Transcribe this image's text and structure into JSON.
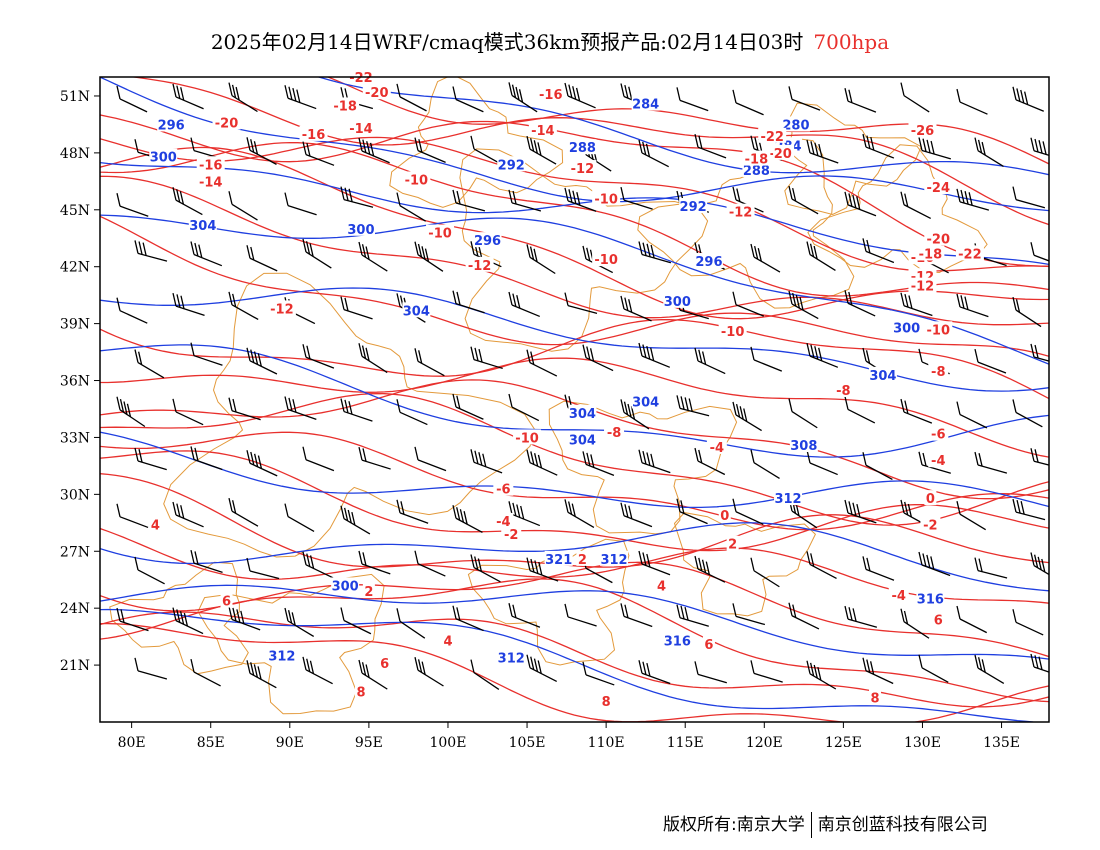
{
  "title": {
    "main": "2025年02月14日WRF/cmaq模式36km预报产品:02月14日03时",
    "level": "700hpa",
    "level_color": "#e8302d"
  },
  "axes": {
    "lon_labels": [
      "80E",
      "85E",
      "90E",
      "95E",
      "100E",
      "105E",
      "110E",
      "115E",
      "120E",
      "125E",
      "130E",
      "135E"
    ],
    "lat_labels": [
      "51N",
      "48N",
      "45N",
      "42N",
      "39N",
      "36N",
      "33N",
      "30N",
      "27N",
      "24N",
      "21N"
    ],
    "lon_range": [
      78,
      138
    ],
    "lat_range": [
      18,
      52
    ]
  },
  "colors": {
    "temperature_contours": "#e8302d",
    "geopotential_contours": "#1f3fe0",
    "boundaries": "#e39a3c",
    "wind_barbs": "#000000"
  },
  "geopotential_labels": [
    {
      "text": "296",
      "lon": 82.5,
      "lat": 49.5
    },
    {
      "text": "300",
      "lon": 82,
      "lat": 47.8
    },
    {
      "text": "304",
      "lon": 84.5,
      "lat": 44.2
    },
    {
      "text": "300",
      "lon": 94.5,
      "lat": 44
    },
    {
      "text": "296",
      "lon": 102.5,
      "lat": 43.4
    },
    {
      "text": "292",
      "lon": 104,
      "lat": 47.4
    },
    {
      "text": "288",
      "lon": 108.5,
      "lat": 48.3
    },
    {
      "text": "284",
      "lon": 112.5,
      "lat": 50.6
    },
    {
      "text": "292",
      "lon": 115.5,
      "lat": 45.2
    },
    {
      "text": "296",
      "lon": 116.5,
      "lat": 42.3
    },
    {
      "text": "300",
      "lon": 114.5,
      "lat": 40.2
    },
    {
      "text": "304",
      "lon": 98,
      "lat": 39.7
    },
    {
      "text": "304",
      "lon": 108.5,
      "lat": 34.3
    },
    {
      "text": "304",
      "lon": 112.5,
      "lat": 34.9
    },
    {
      "text": "304",
      "lon": 108.5,
      "lat": 32.9
    },
    {
      "text": "308",
      "lon": 122.5,
      "lat": 32.6
    },
    {
      "text": "304",
      "lon": 127.5,
      "lat": 36.3
    },
    {
      "text": "300",
      "lon": 129,
      "lat": 38.8
    },
    {
      "text": "312",
      "lon": 121.5,
      "lat": 29.8
    },
    {
      "text": "312",
      "lon": 110.5,
      "lat": 26.6
    },
    {
      "text": "321",
      "lon": 107,
      "lat": 26.6
    },
    {
      "text": "316",
      "lon": 130.5,
      "lat": 24.5
    },
    {
      "text": "316",
      "lon": 114.5,
      "lat": 22.3
    },
    {
      "text": "312",
      "lon": 104,
      "lat": 21.4
    },
    {
      "text": "312",
      "lon": 89.5,
      "lat": 21.5
    },
    {
      "text": "300",
      "lon": 93.5,
      "lat": 25.2
    },
    {
      "text": "288",
      "lon": 119.5,
      "lat": 47.1
    },
    {
      "text": "284",
      "lon": 121.5,
      "lat": 48.4
    },
    {
      "text": "280",
      "lon": 122,
      "lat": 49.5
    }
  ],
  "temperature_labels": [
    {
      "text": "-20",
      "lon": 86,
      "lat": 49.6
    },
    {
      "text": "-16",
      "lon": 85,
      "lat": 47.4
    },
    {
      "text": "-14",
      "lon": 85,
      "lat": 46.5
    },
    {
      "text": "-18",
      "lon": 93.5,
      "lat": 50.5
    },
    {
      "text": "-16",
      "lon": 91.5,
      "lat": 49
    },
    {
      "text": "-14",
      "lon": 94.5,
      "lat": 49.3
    },
    {
      "text": "-20",
      "lon": 95.5,
      "lat": 51.2
    },
    {
      "text": "-22",
      "lon": 94.5,
      "lat": 52
    },
    {
      "text": "-10",
      "lon": 98,
      "lat": 46.6
    },
    {
      "text": "-10",
      "lon": 99.5,
      "lat": 43.8
    },
    {
      "text": "-12",
      "lon": 102,
      "lat": 42.1
    },
    {
      "text": "-14",
      "lon": 106,
      "lat": 49.2
    },
    {
      "text": "-16",
      "lon": 106.5,
      "lat": 51.1
    },
    {
      "text": "-12",
      "lon": 108.5,
      "lat": 47.2
    },
    {
      "text": "-10",
      "lon": 110,
      "lat": 45.6
    },
    {
      "text": "-10",
      "lon": 110,
      "lat": 42.4
    },
    {
      "text": "-12",
      "lon": 118.5,
      "lat": 44.9
    },
    {
      "text": "-22",
      "lon": 120.5,
      "lat": 48.9
    },
    {
      "text": "-20",
      "lon": 121,
      "lat": 48
    },
    {
      "text": "-18",
      "lon": 119.5,
      "lat": 47.7
    },
    {
      "text": "-26",
      "lon": 130,
      "lat": 49.2
    },
    {
      "text": "-24",
      "lon": 131,
      "lat": 46.2
    },
    {
      "text": "-20",
      "lon": 131,
      "lat": 43.5
    },
    {
      "text": "-16",
      "lon": 130,
      "lat": 42.5
    },
    {
      "text": "-12",
      "lon": 130,
      "lat": 41.5
    },
    {
      "text": "-18",
      "lon": 130.5,
      "lat": 42.7
    },
    {
      "text": "-22",
      "lon": 133,
      "lat": 42.7
    },
    {
      "text": "-12",
      "lon": 130,
      "lat": 41
    },
    {
      "text": "-12",
      "lon": 89.5,
      "lat": 39.8
    },
    {
      "text": "-10",
      "lon": 118,
      "lat": 38.6
    },
    {
      "text": "-10",
      "lon": 131,
      "lat": 38.7
    },
    {
      "text": "-8",
      "lon": 125,
      "lat": 35.5
    },
    {
      "text": "-8",
      "lon": 131,
      "lat": 36.5
    },
    {
      "text": "-6",
      "lon": 131,
      "lat": 33.2
    },
    {
      "text": "-4",
      "lon": 131,
      "lat": 31.8
    },
    {
      "text": "-10",
      "lon": 105,
      "lat": 33
    },
    {
      "text": "-8",
      "lon": 110.5,
      "lat": 33.3
    },
    {
      "text": "-4",
      "lon": 117,
      "lat": 32.5
    },
    {
      "text": "-6",
      "lon": 103.5,
      "lat": 30.3
    },
    {
      "text": "-4",
      "lon": 103.5,
      "lat": 28.6
    },
    {
      "text": "-2",
      "lon": 104,
      "lat": 27.9
    },
    {
      "text": "0",
      "lon": 117.5,
      "lat": 28.9
    },
    {
      "text": "0",
      "lon": 130.5,
      "lat": 29.8
    },
    {
      "text": "-2",
      "lon": 130.5,
      "lat": 28.4
    },
    {
      "text": "2",
      "lon": 118,
      "lat": 27.4
    },
    {
      "text": "2",
      "lon": 108.5,
      "lat": 26.6
    },
    {
      "text": "4",
      "lon": 81.5,
      "lat": 28.4
    },
    {
      "text": "2",
      "lon": 95,
      "lat": 24.9
    },
    {
      "text": "4",
      "lon": 100,
      "lat": 22.3
    },
    {
      "text": "4",
      "lon": 113.5,
      "lat": 25.2
    },
    {
      "text": "-4",
      "lon": 128.5,
      "lat": 24.7
    },
    {
      "text": "6",
      "lon": 86,
      "lat": 24.4
    },
    {
      "text": "6",
      "lon": 96,
      "lat": 21.1
    },
    {
      "text": "8",
      "lon": 94.5,
      "lat": 19.6
    },
    {
      "text": "6",
      "lon": 116.5,
      "lat": 22.1
    },
    {
      "text": "6",
      "lon": 131,
      "lat": 23.4
    },
    {
      "text": "8",
      "lon": 110,
      "lat": 19.1
    },
    {
      "text": "8",
      "lon": 127,
      "lat": 19.3
    }
  ],
  "footer": {
    "left": "版权所有:南京大学",
    "right": "南京创蓝科技有限公司"
  }
}
